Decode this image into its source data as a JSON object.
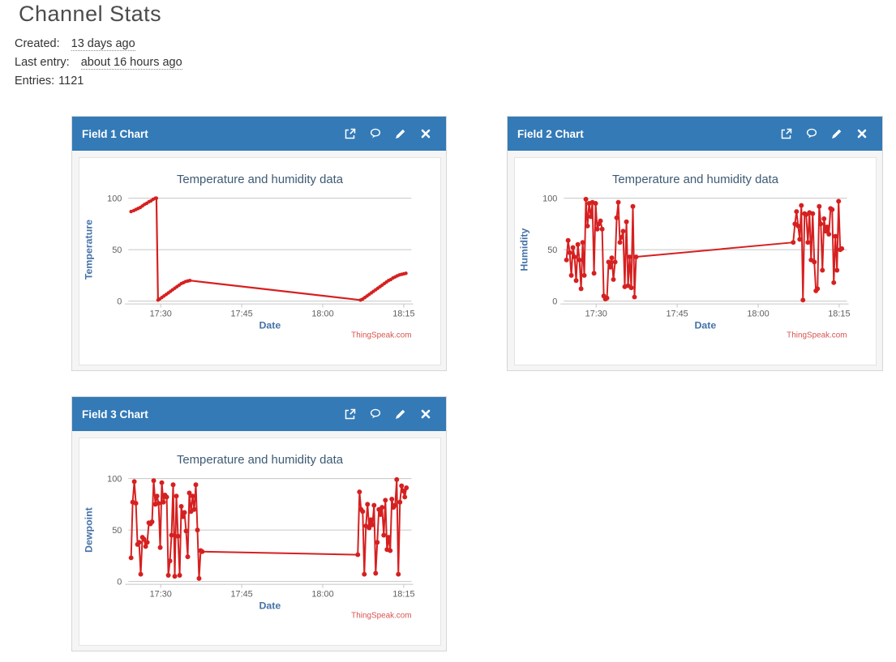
{
  "page": {
    "title": "Channel Stats",
    "meta": [
      {
        "label": "Created:",
        "value": "13 days ago",
        "link": true
      },
      {
        "label": "Last entry:",
        "value": "about 16 hours ago",
        "link": true
      },
      {
        "label": "Entries:",
        "value": "1121",
        "link": false
      }
    ]
  },
  "colors": {
    "panel_header_bg": "#337ab7",
    "panel_header_text": "#ffffff",
    "line_red": "#d62020",
    "credits_red": "#d9534f",
    "axis_title_blue": "#4572a7",
    "chart_title": "#3d5a73",
    "tick_label": "#606060",
    "gridline": "#c6c6c6"
  },
  "panels": [
    {
      "title": "Field 1 Chart",
      "chart_index": 0,
      "actions": [
        "external-link",
        "comment",
        "edit-pencil",
        "close"
      ]
    },
    {
      "title": "Field 2 Chart",
      "chart_index": 1,
      "actions": [
        "external-link",
        "comment",
        "edit-pencil",
        "close"
      ]
    },
    {
      "title": "Field 3 Chart",
      "chart_index": 2,
      "actions": [
        "external-link",
        "comment",
        "edit-pencil",
        "close"
      ]
    }
  ],
  "chart_data": [
    {
      "type": "line",
      "title": "Temperature and humidity data",
      "xlabel": "Date",
      "ylabel": "Temperature",
      "credits": "ThingSpeak.com",
      "x_unit": "minutes after 17:00",
      "xlim": [
        24,
        76
      ],
      "ylim": [
        0,
        100
      ],
      "yticks": [
        0,
        50,
        100
      ],
      "xticks": [
        {
          "x": 30,
          "label": "17:30"
        },
        {
          "x": 45,
          "label": "17:45"
        },
        {
          "x": 60,
          "label": "18:00"
        },
        {
          "x": 75,
          "label": "18:15"
        }
      ],
      "grid": true,
      "legend": "none",
      "marker_radius": 2.2,
      "line_width": 2.2,
      "points": [
        [
          24.5,
          87
        ],
        [
          25,
          88
        ],
        [
          25.4,
          89
        ],
        [
          25.8,
          90
        ],
        [
          26.2,
          91
        ],
        [
          26.6,
          92.5
        ],
        [
          27,
          94
        ],
        [
          27.4,
          95
        ],
        [
          27.8,
          96.5
        ],
        [
          28.2,
          97.5
        ],
        [
          28.6,
          99
        ],
        [
          29,
          100
        ],
        [
          29.2,
          100
        ],
        [
          29.5,
          1
        ],
        [
          29.8,
          2
        ],
        [
          30.2,
          3.5
        ],
        [
          30.6,
          5
        ],
        [
          31,
          6.5
        ],
        [
          31.4,
          8
        ],
        [
          31.8,
          9.5
        ],
        [
          32.2,
          11
        ],
        [
          32.6,
          12.5
        ],
        [
          33,
          14
        ],
        [
          33.4,
          15.5
        ],
        [
          33.8,
          17
        ],
        [
          34.2,
          18
        ],
        [
          34.6,
          19
        ],
        [
          35,
          19.5
        ],
        [
          35.4,
          20
        ],
        [
          67,
          1
        ],
        [
          67.4,
          2
        ],
        [
          67.8,
          3.5
        ],
        [
          68.2,
          5
        ],
        [
          68.6,
          6.5
        ],
        [
          69,
          8
        ],
        [
          69.4,
          9.5
        ],
        [
          69.8,
          11
        ],
        [
          70.2,
          12.5
        ],
        [
          70.6,
          14
        ],
        [
          71,
          15.5
        ],
        [
          71.4,
          17
        ],
        [
          71.8,
          18.5
        ],
        [
          72.2,
          20
        ],
        [
          72.6,
          21
        ],
        [
          73,
          22.5
        ],
        [
          73.4,
          23.5
        ],
        [
          73.8,
          24.5
        ],
        [
          74.2,
          25.5
        ],
        [
          74.6,
          26
        ],
        [
          75,
          26.5
        ],
        [
          75.4,
          27
        ]
      ]
    },
    {
      "type": "line",
      "title": "Temperature and humidity data",
      "xlabel": "Date",
      "ylabel": "Humidity",
      "credits": "ThingSpeak.com",
      "x_unit": "minutes after 17:00",
      "xlim": [
        24,
        76
      ],
      "ylim": [
        0,
        100
      ],
      "yticks": [
        0,
        50,
        100
      ],
      "xticks": [
        {
          "x": 30,
          "label": "17:30"
        },
        {
          "x": 45,
          "label": "17:45"
        },
        {
          "x": 60,
          "label": "18:00"
        },
        {
          "x": 75,
          "label": "18:15"
        }
      ],
      "grid": true,
      "legend": "none",
      "marker_radius": 3,
      "line_width": 2,
      "points": [
        [
          24.5,
          40
        ],
        [
          24.8,
          59
        ],
        [
          25.1,
          47
        ],
        [
          25.4,
          25
        ],
        [
          25.7,
          52
        ],
        [
          26,
          43
        ],
        [
          26.3,
          20
        ],
        [
          26.6,
          55
        ],
        [
          26.9,
          40
        ],
        [
          27.2,
          12
        ],
        [
          27.5,
          57
        ],
        [
          27.8,
          25
        ],
        [
          28.1,
          99
        ],
        [
          28.4,
          73
        ],
        [
          28.7,
          95
        ],
        [
          29,
          82
        ],
        [
          29.3,
          96
        ],
        [
          29.6,
          27
        ],
        [
          29.9,
          95
        ],
        [
          30.2,
          70
        ],
        [
          30.5,
          75
        ],
        [
          30.8,
          78
        ],
        [
          31.1,
          70
        ],
        [
          31.4,
          5
        ],
        [
          31.7,
          2
        ],
        [
          32,
          3
        ],
        [
          32.3,
          38
        ],
        [
          32.6,
          33
        ],
        [
          32.9,
          42
        ],
        [
          33.2,
          21
        ],
        [
          33.5,
          38
        ],
        [
          33.8,
          81
        ],
        [
          34.1,
          96
        ],
        [
          34.4,
          57
        ],
        [
          34.7,
          62
        ],
        [
          35,
          68
        ],
        [
          35.3,
          14
        ],
        [
          35.6,
          77
        ],
        [
          35.9,
          15
        ],
        [
          36.2,
          43
        ],
        [
          36.5,
          13
        ],
        [
          36.8,
          92
        ],
        [
          37.1,
          4
        ],
        [
          37.4,
          43
        ],
        [
          66.5,
          57
        ],
        [
          66.8,
          75
        ],
        [
          67.1,
          87
        ],
        [
          67.4,
          73
        ],
        [
          67.7,
          60
        ],
        [
          68,
          93
        ],
        [
          68.3,
          1
        ],
        [
          68.6,
          85
        ],
        [
          68.9,
          84
        ],
        [
          69.2,
          57
        ],
        [
          69.5,
          86
        ],
        [
          69.8,
          40
        ],
        [
          70.1,
          85
        ],
        [
          70.4,
          38
        ],
        [
          70.7,
          10
        ],
        [
          71,
          12
        ],
        [
          71.3,
          92
        ],
        [
          71.6,
          75
        ],
        [
          71.9,
          30
        ],
        [
          72.2,
          80
        ],
        [
          72.5,
          68
        ],
        [
          72.8,
          72
        ],
        [
          73.1,
          65
        ],
        [
          73.4,
          90
        ],
        [
          73.7,
          89
        ],
        [
          74,
          18
        ],
        [
          74.3,
          63
        ],
        [
          74.6,
          30
        ],
        [
          74.9,
          97
        ],
        [
          75.2,
          50
        ],
        [
          75.5,
          51
        ]
      ]
    },
    {
      "type": "line",
      "title": "Temperature and humidity data",
      "xlabel": "Date",
      "ylabel": "Dewpoint",
      "credits": "ThingSpeak.com",
      "x_unit": "minutes after 17:00",
      "xlim": [
        24,
        76
      ],
      "ylim": [
        0,
        100
      ],
      "yticks": [
        0,
        50,
        100
      ],
      "xticks": [
        {
          "x": 30,
          "label": "17:30"
        },
        {
          "x": 45,
          "label": "17:45"
        },
        {
          "x": 60,
          "label": "18:00"
        },
        {
          "x": 75,
          "label": "18:15"
        }
      ],
      "grid": true,
      "legend": "none",
      "marker_radius": 3,
      "line_width": 2,
      "points": [
        [
          24.5,
          23
        ],
        [
          24.8,
          77
        ],
        [
          25.1,
          97
        ],
        [
          25.4,
          76
        ],
        [
          25.7,
          36
        ],
        [
          26,
          38
        ],
        [
          26.3,
          7
        ],
        [
          26.6,
          43
        ],
        [
          26.9,
          41
        ],
        [
          27.2,
          34
        ],
        [
          27.5,
          38
        ],
        [
          27.8,
          57
        ],
        [
          28.1,
          56
        ],
        [
          28.4,
          58
        ],
        [
          28.7,
          98
        ],
        [
          29,
          75
        ],
        [
          29.3,
          83
        ],
        [
          29.6,
          76
        ],
        [
          29.9,
          33
        ],
        [
          30.2,
          96
        ],
        [
          30.5,
          77
        ],
        [
          30.8,
          84
        ],
        [
          31.1,
          82
        ],
        [
          31.4,
          6
        ],
        [
          31.7,
          20
        ],
        [
          32,
          45
        ],
        [
          32.3,
          94
        ],
        [
          32.6,
          5
        ],
        [
          32.9,
          83
        ],
        [
          33.2,
          44
        ],
        [
          33.5,
          6
        ],
        [
          33.8,
          73
        ],
        [
          34.1,
          63
        ],
        [
          34.4,
          67
        ],
        [
          34.7,
          49
        ],
        [
          35,
          24
        ],
        [
          35.3,
          86
        ],
        [
          35.6,
          68
        ],
        [
          35.9,
          83
        ],
        [
          36.2,
          70
        ],
        [
          36.5,
          94
        ],
        [
          36.8,
          50
        ],
        [
          37.1,
          3
        ],
        [
          37.4,
          30
        ],
        [
          37.7,
          29
        ],
        [
          66.5,
          26
        ],
        [
          66.8,
          87
        ],
        [
          67.1,
          70
        ],
        [
          67.4,
          68
        ],
        [
          67.7,
          7
        ],
        [
          68,
          54
        ],
        [
          68.3,
          75
        ],
        [
          68.6,
          52
        ],
        [
          68.9,
          60
        ],
        [
          69.2,
          55
        ],
        [
          69.5,
          74
        ],
        [
          69.8,
          8
        ],
        [
          70.1,
          38
        ],
        [
          70.4,
          70
        ],
        [
          70.7,
          65
        ],
        [
          71,
          72
        ],
        [
          71.3,
          45
        ],
        [
          71.6,
          79
        ],
        [
          71.9,
          31
        ],
        [
          72.2,
          43
        ],
        [
          72.5,
          30
        ],
        [
          72.8,
          80
        ],
        [
          73.1,
          72
        ],
        [
          73.4,
          74
        ],
        [
          73.7,
          99
        ],
        [
          74,
          7
        ],
        [
          74.3,
          77
        ],
        [
          74.6,
          93
        ],
        [
          74.9,
          88
        ],
        [
          75.2,
          82
        ],
        [
          75.5,
          91
        ]
      ]
    }
  ]
}
